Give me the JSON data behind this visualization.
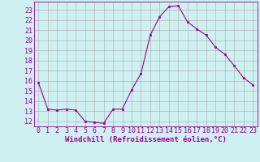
{
  "x": [
    0,
    1,
    2,
    3,
    4,
    5,
    6,
    7,
    8,
    9,
    10,
    11,
    12,
    13,
    14,
    15,
    16,
    17,
    18,
    19,
    20,
    21,
    22,
    23
  ],
  "y": [
    15.8,
    13.2,
    13.1,
    13.2,
    13.1,
    12.0,
    11.9,
    11.8,
    13.2,
    13.2,
    15.1,
    16.7,
    20.5,
    22.3,
    23.3,
    23.4,
    21.8,
    21.1,
    20.5,
    19.3,
    18.6,
    17.5,
    16.3,
    15.6
  ],
  "line_color": "#990099",
  "marker": "s",
  "marker_size": 2,
  "bg_color": "#cff0f0",
  "grid_color": "#aaaaaa",
  "xlabel": "Windchill (Refroidissement éolien,°C)",
  "ylabel_ticks": [
    12,
    13,
    14,
    15,
    16,
    17,
    18,
    19,
    20,
    21,
    22,
    23
  ],
  "ylim": [
    11.5,
    23.8
  ],
  "xlim": [
    -0.5,
    23.5
  ],
  "tick_fontsize": 6,
  "xlabel_fontsize": 6.5
}
